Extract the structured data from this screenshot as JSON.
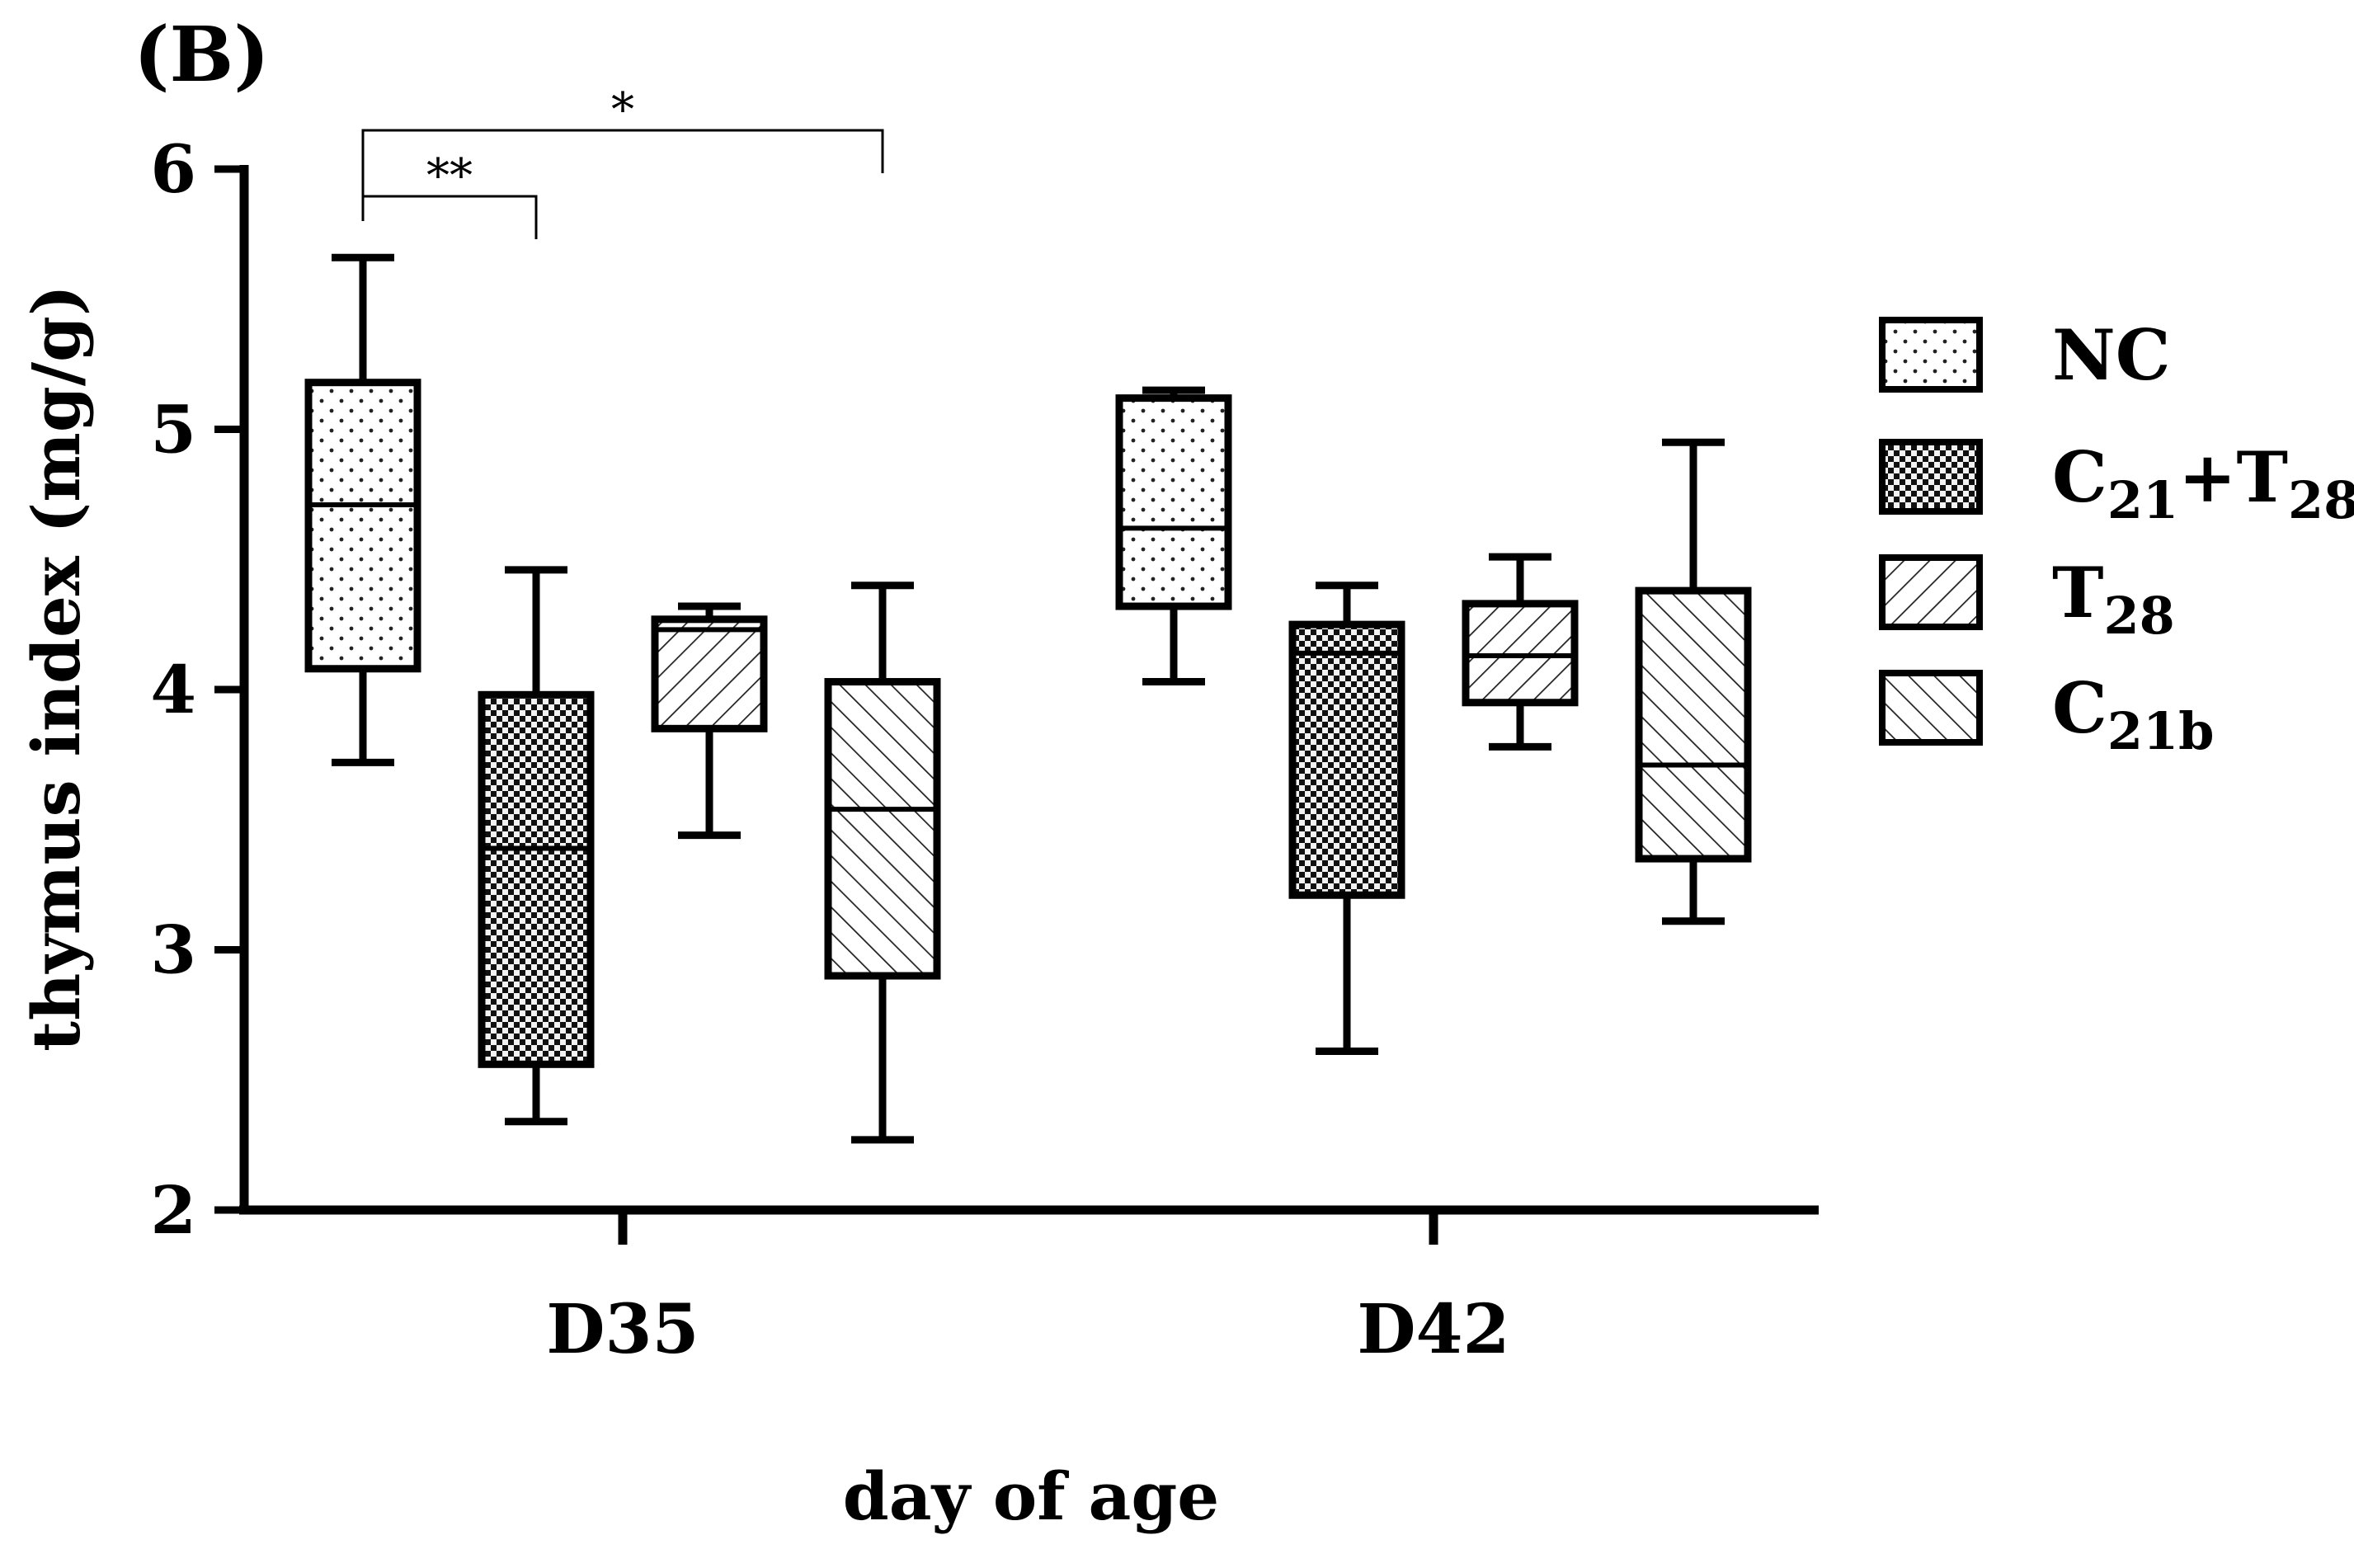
{
  "chart_data": {
    "type": "box",
    "panel_label": "(B)",
    "title": "",
    "xlabel": "day of age",
    "ylabel": "thymus index (mg/g)",
    "ylim": [
      2,
      6
    ],
    "yticks": [
      2,
      3,
      4,
      5,
      6
    ],
    "categories": [
      "D35",
      "D42"
    ],
    "legend_position": "right",
    "series": [
      {
        "name": "NC",
        "label_base": "NC",
        "label_sub": "",
        "label_plus": "",
        "label_base2": "",
        "label_sub2": "",
        "pattern": "dots",
        "boxes": [
          {
            "min": 3.72,
            "q1": 4.08,
            "median": 4.71,
            "q3": 5.18,
            "max": 5.66
          },
          {
            "min": 4.03,
            "q1": 4.32,
            "median": 4.62,
            "q3": 5.12,
            "max": 5.15
          }
        ]
      },
      {
        "name": "C21+T28",
        "label_base": "C",
        "label_sub": "21",
        "label_plus": "+",
        "label_base2": "T",
        "label_sub2": "28",
        "pattern": "checker",
        "boxes": [
          {
            "min": 2.34,
            "q1": 2.56,
            "median": 3.39,
            "q3": 3.98,
            "max": 4.46
          },
          {
            "min": 2.61,
            "q1": 3.21,
            "median": 4.14,
            "q3": 4.25,
            "max": 4.4
          }
        ]
      },
      {
        "name": "T28",
        "label_base": "T",
        "label_sub": "28",
        "label_plus": "",
        "label_base2": "",
        "label_sub2": "",
        "pattern": "diag-right",
        "boxes": [
          {
            "min": 3.44,
            "q1": 3.85,
            "median": 4.23,
            "q3": 4.27,
            "max": 4.32
          },
          {
            "min": 3.78,
            "q1": 3.95,
            "median": 4.13,
            "q3": 4.33,
            "max": 4.51
          }
        ]
      },
      {
        "name": "C21b",
        "label_base": "C",
        "label_sub": "21b",
        "label_plus": "",
        "label_base2": "",
        "label_sub2": "",
        "pattern": "diag-left",
        "boxes": [
          {
            "min": 2.27,
            "q1": 2.9,
            "median": 3.54,
            "q3": 4.03,
            "max": 4.4
          },
          {
            "min": 3.11,
            "q1": 3.35,
            "median": 3.71,
            "q3": 4.38,
            "max": 4.95
          }
        ]
      }
    ],
    "significance": [
      {
        "category": "D35",
        "from_series": "NC",
        "to_series": "C21+T28",
        "label": "**"
      },
      {
        "category": "D35",
        "from_series": "NC",
        "to_series": "C21b",
        "label": "*"
      }
    ]
  }
}
